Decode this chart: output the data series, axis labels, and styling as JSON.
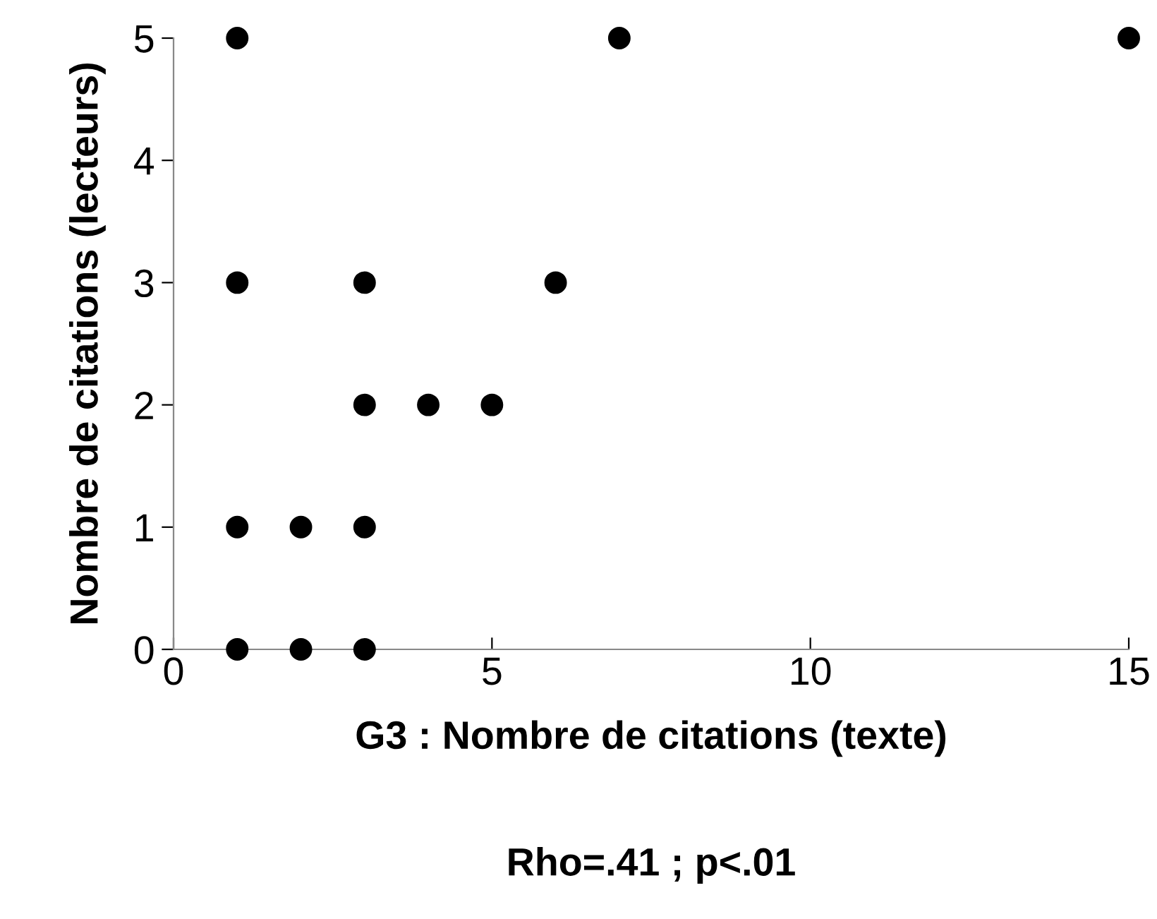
{
  "chart_data": {
    "type": "scatter",
    "xlabel": "G3 : Nombre de citations (texte)",
    "ylabel": "Nombre de citations (lecteurs)",
    "annotations": [
      "Rho=.41 ; p<.01"
    ],
    "x": [
      1,
      7,
      15,
      1,
      3,
      6,
      3,
      4,
      5,
      1,
      2,
      3,
      1,
      2,
      3
    ],
    "series": [
      {
        "color": "#000000",
        "values": [
          5,
          5,
          5,
          3,
          3,
          3,
          2,
          2,
          2,
          1,
          1,
          1,
          0,
          0,
          0
        ]
      }
    ],
    "xlim": [
      0,
      15
    ],
    "ylim": [
      0,
      5
    ],
    "xticks": [
      0,
      5,
      10,
      15
    ],
    "yticks": [
      0,
      1,
      2,
      3,
      4,
      5
    ],
    "grid": false,
    "marker": "circle"
  }
}
